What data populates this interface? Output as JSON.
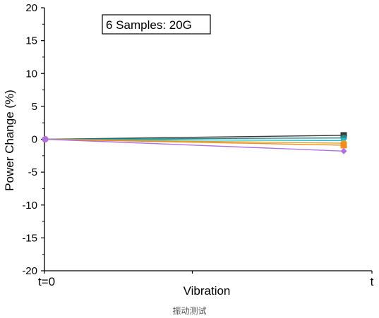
{
  "chart_data": {
    "type": "line",
    "annotation": "6 Samples: 20G",
    "xlabel": "Vibration",
    "ylabel": "Power Change (%)",
    "x_tick_labels": [
      "t=0",
      "t"
    ],
    "ylim": [
      -20,
      20
    ],
    "y_ticks": [
      -20,
      -15,
      -10,
      -5,
      0,
      5,
      10,
      15,
      20
    ],
    "grid": false,
    "series": [
      {
        "values": [
          0,
          0.6
        ],
        "color": "#3a3a3a",
        "marker": "square"
      },
      {
        "values": [
          0,
          0.2
        ],
        "color": "#2a8a8a",
        "marker": "circle"
      },
      {
        "values": [
          0,
          -0.2
        ],
        "color": "#1fb8d0",
        "marker": "triangle-down"
      },
      {
        "values": [
          0,
          -0.6
        ],
        "color": "#d4a82a",
        "marker": "circle"
      },
      {
        "values": [
          0,
          -0.9
        ],
        "color": "#f28a1e",
        "marker": "square"
      },
      {
        "values": [
          0,
          -1.8
        ],
        "color": "#b070e0",
        "marker": "diamond"
      }
    ]
  },
  "caption": "振动测试"
}
